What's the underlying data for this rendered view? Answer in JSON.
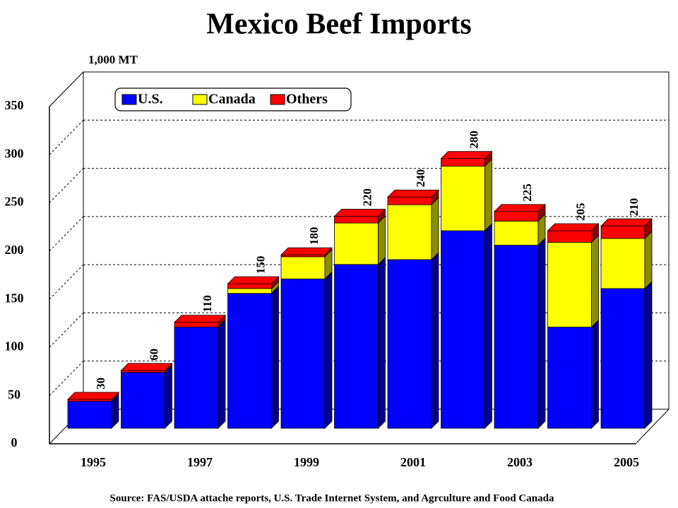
{
  "chart_data": {
    "type": "stacked-bar-3d",
    "title": "Mexico Beef Imports",
    "y_axis_label": "1,000 MT",
    "source": "Source:  FAS/USDA attache reports, U.S. Trade Internet System, and Agrculture and Food Canada",
    "categories": [
      "1995",
      null,
      "1997",
      null,
      "1999",
      null,
      "2001",
      null,
      "2003",
      null,
      "2005"
    ],
    "series": [
      {
        "name": "U.S.",
        "color": "#0000ff",
        "values": [
          28,
          58,
          105,
          140,
          155,
          170,
          175,
          205,
          190,
          105,
          145
        ]
      },
      {
        "name": "Canada",
        "color": "#ffff00",
        "values": [
          0,
          0,
          0,
          5,
          23,
          43,
          57,
          67,
          25,
          88,
          52
        ]
      },
      {
        "name": "Others",
        "color": "#ff0000",
        "values": [
          2,
          2,
          5,
          5,
          2,
          7,
          8,
          8,
          10,
          12,
          13
        ]
      }
    ],
    "totals": [
      30,
      60,
      110,
      150,
      180,
      220,
      240,
      280,
      225,
      205,
      210
    ],
    "ylim": [
      0,
      350
    ],
    "yticks": [
      0,
      50,
      100,
      150,
      200,
      250,
      300,
      350
    ],
    "grid": true,
    "legend": "top-left"
  }
}
